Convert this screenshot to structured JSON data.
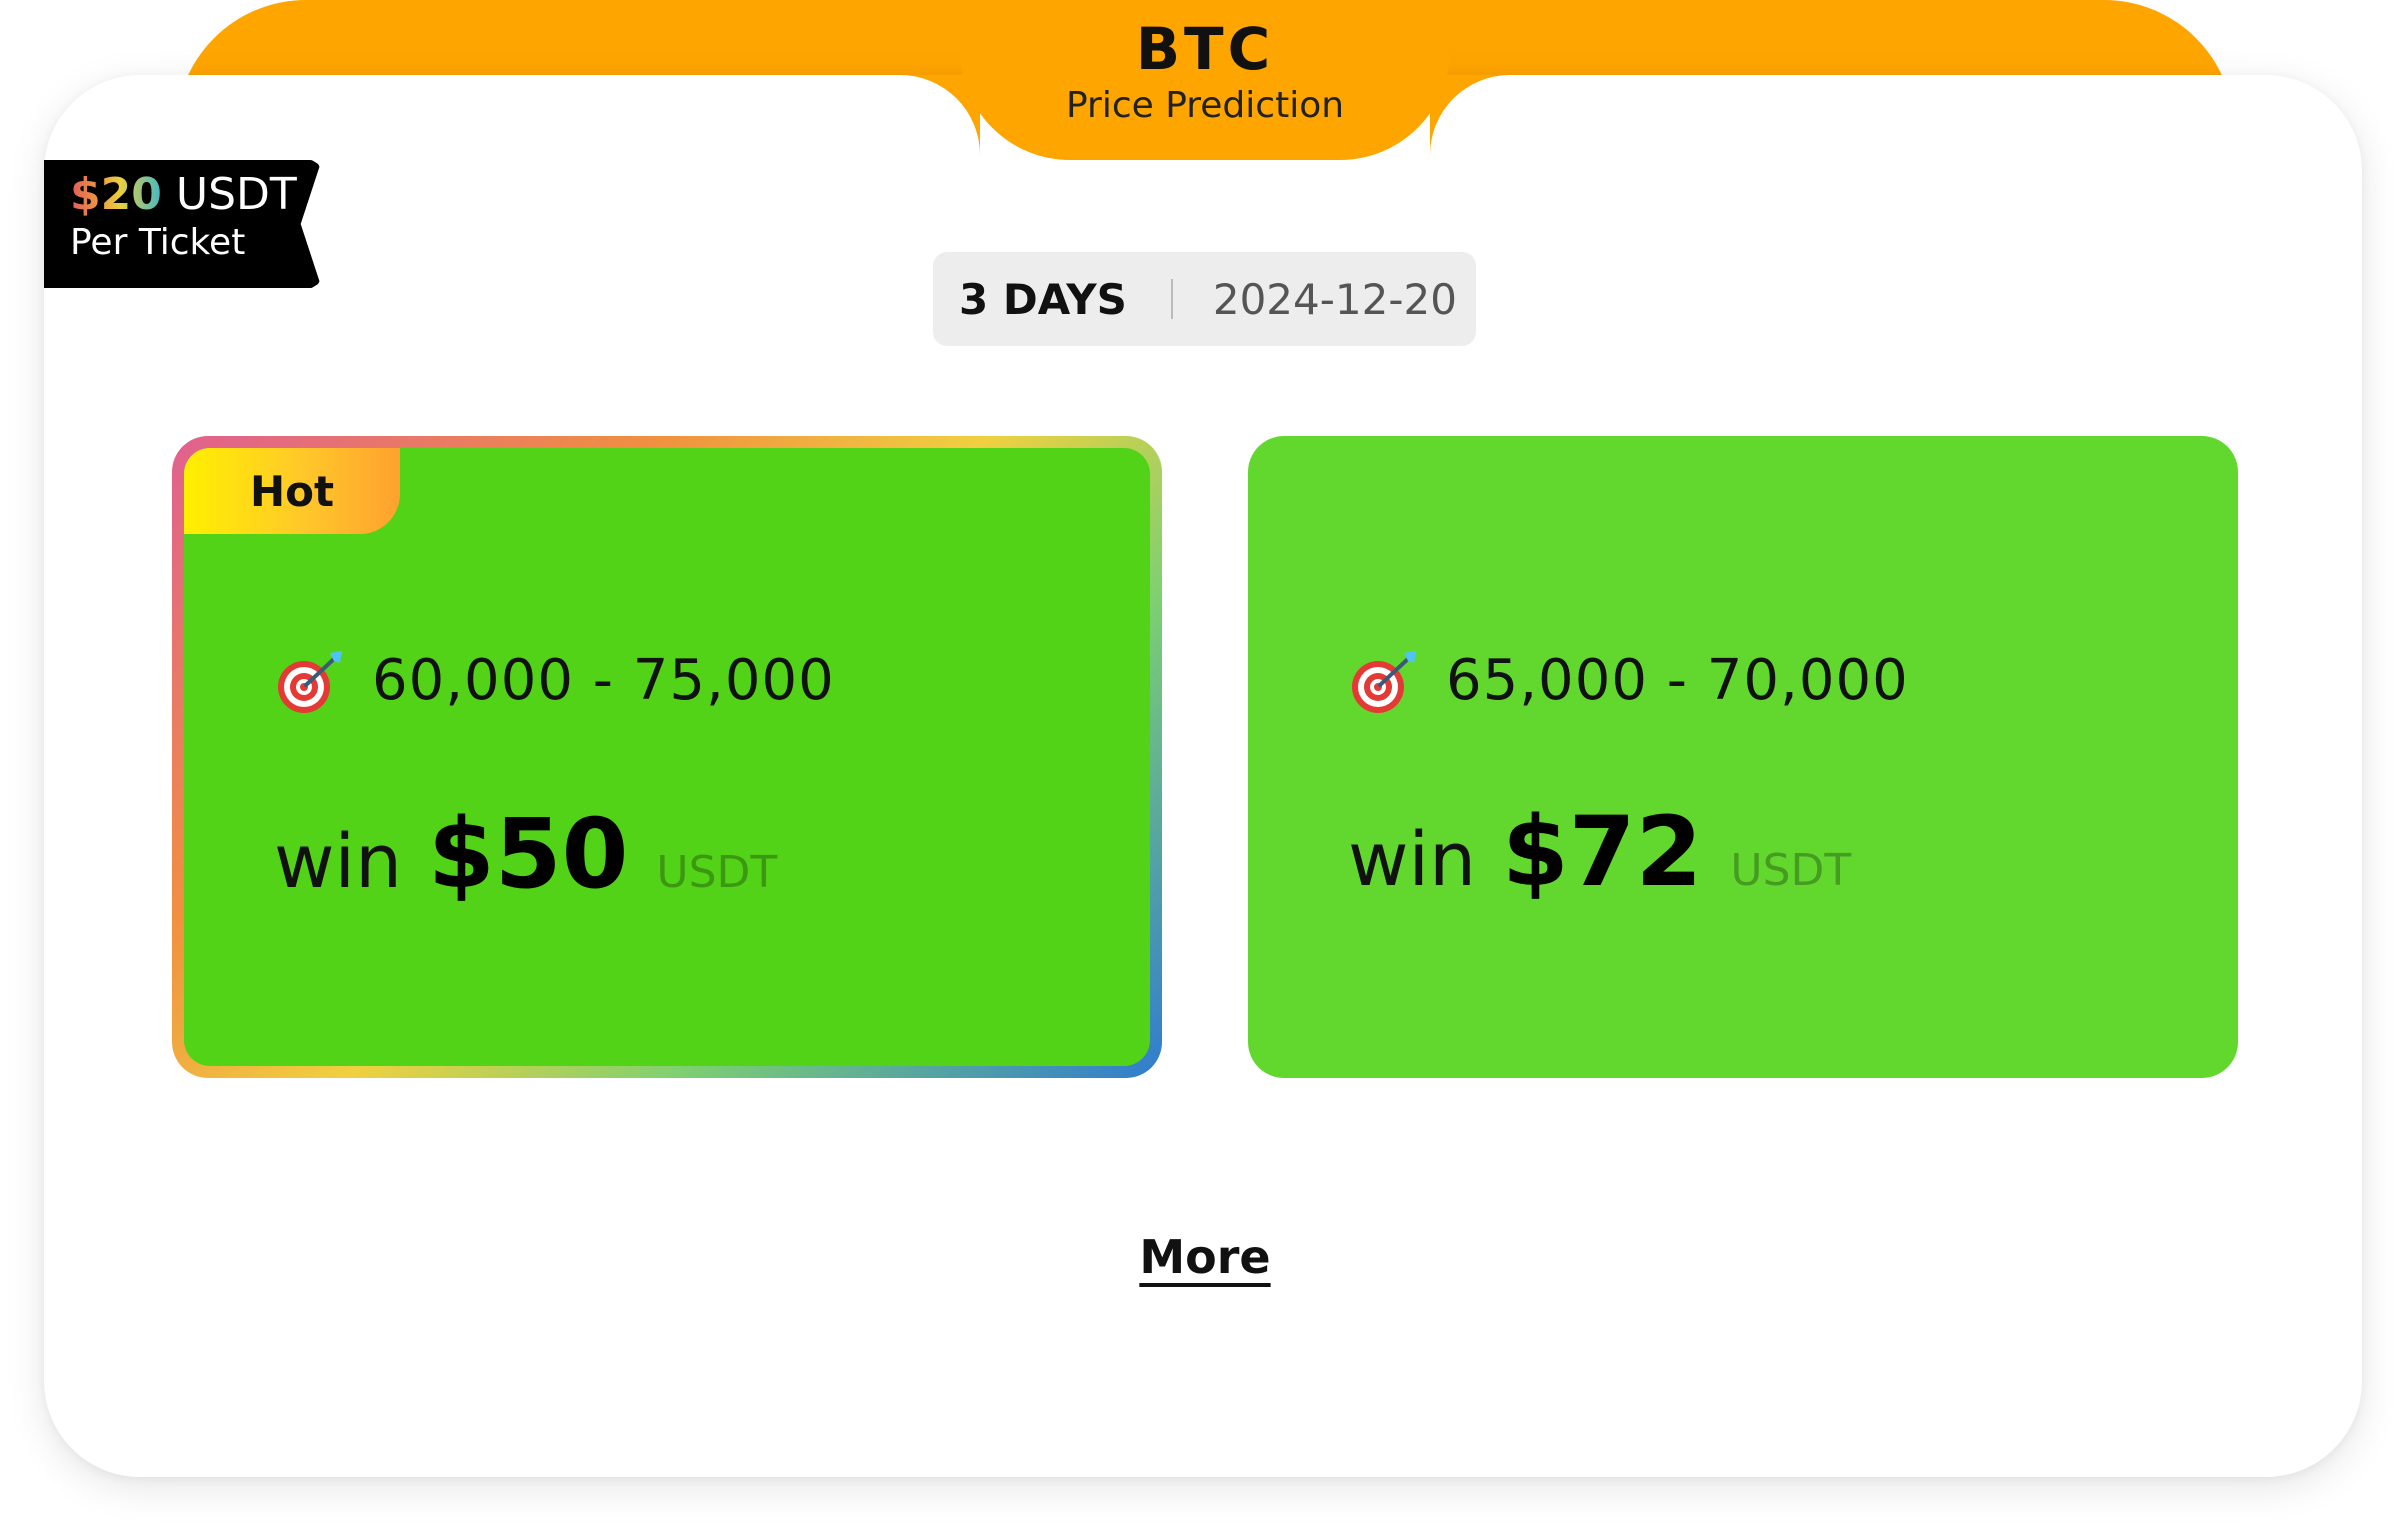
{
  "header": {
    "title": "BTC",
    "subtitle": "Price Prediction"
  },
  "ticket": {
    "price": "$20",
    "currency": "USDT",
    "label": "Per Ticket"
  },
  "duration": {
    "days_label": "3 DAYS",
    "date": "2024-12-20"
  },
  "options": [
    {
      "badge": "Hot",
      "range": "60,000 - 75,000",
      "win_label": "win",
      "win_amount": "$50",
      "win_unit": "USDT",
      "icon": "target-dart-icon"
    },
    {
      "range": "65,000 - 70,000",
      "win_label": "win",
      "win_amount": "$72",
      "win_unit": "USDT",
      "icon": "target-dart-icon"
    }
  ],
  "more_label": "More",
  "colors": {
    "accent_orange": "#FFA500",
    "option_green_hot": "#52D317",
    "option_green": "#62D82E"
  }
}
